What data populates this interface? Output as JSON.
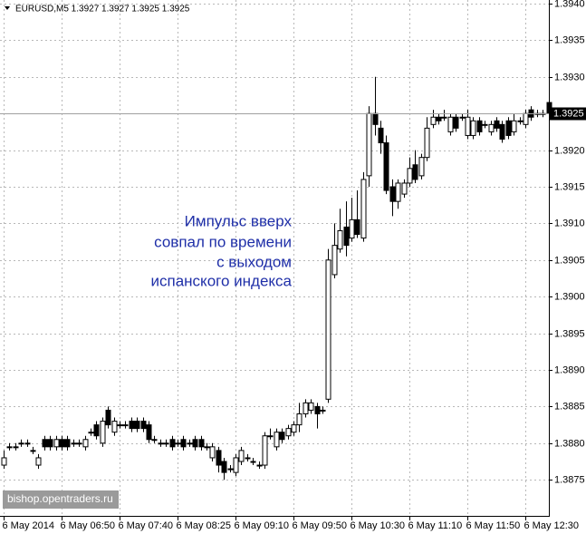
{
  "chart_data": {
    "type": "candlestick",
    "title": "EURUSD,M5  1.3927 1.3927 1.3925 1.3925",
    "annotation": [
      "Импульс вверх",
      "совпал по времени",
      "с выходом",
      "испанского индекса"
    ],
    "watermark": "bishop.opentraders.ru",
    "last_price": 1.3925,
    "up_color": "#ffffff",
    "down_color": "#000000",
    "grid": true,
    "ylim": [
      1.387,
      1.394
    ],
    "yticks": [
      1.3875,
      {
        "value": 1.388,
        "label": "1.3880"
      },
      1.3885,
      {
        "value": 1.389,
        "label": "1.3890"
      },
      1.3895,
      {
        "value": 1.39,
        "label": "1.3900"
      },
      1.3905,
      {
        "value": 1.391,
        "label": "1.3910"
      },
      1.3915,
      {
        "value": 1.392,
        "label": "1.3920"
      },
      1.3925,
      {
        "value": 1.393,
        "label": "1.3930"
      },
      1.3935,
      {
        "value": 1.394,
        "label": "1.3940"
      }
    ],
    "categories": [
      "6 May 2014",
      null,
      null,
      null,
      null,
      null,
      null,
      null,
      null,
      null,
      "6 May 06:50",
      null,
      null,
      null,
      null,
      null,
      null,
      null,
      null,
      null,
      "6 May 07:40",
      null,
      null,
      null,
      null,
      null,
      null,
      null,
      null,
      null,
      "6 May 08:25",
      null,
      null,
      null,
      null,
      null,
      null,
      null,
      null,
      null,
      "6 May 09:10",
      null,
      null,
      null,
      null,
      null,
      null,
      null,
      null,
      null,
      "6 May 09:50",
      null,
      null,
      null,
      null,
      null,
      null,
      null,
      null,
      null,
      "6 May 10:30",
      null,
      null,
      null,
      null,
      null,
      null,
      null,
      null,
      null,
      "6 May 11:10",
      null,
      null,
      null,
      null,
      null,
      null,
      null,
      null,
      null,
      "6 May 11:50",
      null,
      null,
      null,
      null,
      null,
      null,
      null,
      null,
      null,
      "6 May 12:30",
      null,
      null,
      null,
      null
    ],
    "open": [
      1.3877,
      1.38795,
      1.38795,
      1.388,
      1.388,
      1.3879,
      1.3877,
      1.38805,
      1.38805,
      1.38795,
      1.38805,
      1.38805,
      1.388,
      1.388,
      1.38795,
      1.38815,
      1.38825,
      1.388,
      1.38845,
      1.38815,
      1.38825,
      1.38825,
      1.3883,
      1.3883,
      1.3883,
      1.38825,
      1.38805,
      1.388,
      1.388,
      1.38805,
      1.388,
      1.38805,
      1.388,
      1.38805,
      1.38805,
      1.38795,
      1.3878,
      1.3879,
      1.38775,
      1.38765,
      1.3876,
      1.38775,
      1.3878,
      1.38775,
      1.3877,
      1.3877,
      1.3881,
      1.38795,
      1.38815,
      1.3881,
      1.38815,
      1.38825,
      1.3884,
      1.38845,
      1.3885,
      1.38845,
      1.3886,
      1.3903,
      1.39065,
      1.39095,
      1.3908,
      1.39105,
      1.3908,
      1.39165,
      1.3925,
      1.3923,
      1.3921,
      1.3915,
      1.3913,
      1.3914,
      1.39155,
      1.3918,
      1.39165,
      1.3919,
      1.39235,
      1.39245,
      1.39245,
      1.39225,
      1.39245,
      1.39245,
      1.3922,
      1.3922,
      1.3924,
      1.39235,
      1.39225,
      1.3924,
      1.39235,
      1.3924,
      1.39225,
      1.3924,
      1.39235,
      1.39255,
      1.3925,
      1.3925,
      1.39265
    ],
    "high": [
      1.3879,
      1.388,
      1.388,
      1.38805,
      1.38805,
      1.38795,
      1.38785,
      1.3881,
      1.3881,
      1.3881,
      1.3881,
      1.3881,
      1.38805,
      1.38805,
      1.3881,
      1.3882,
      1.3883,
      1.38835,
      1.3885,
      1.38835,
      1.3883,
      1.3883,
      1.38835,
      1.38835,
      1.38835,
      1.3883,
      1.3881,
      1.38805,
      1.38805,
      1.3881,
      1.38805,
      1.3881,
      1.38805,
      1.3881,
      1.3881,
      1.388,
      1.388,
      1.38795,
      1.3878,
      1.3877,
      1.38785,
      1.38795,
      1.38785,
      1.3878,
      1.38775,
      1.38815,
      1.3882,
      1.3882,
      1.3882,
      1.38825,
      1.3883,
      1.38855,
      1.3886,
      1.3886,
      1.38855,
      1.3885,
      1.39065,
      1.391,
      1.3912,
      1.3913,
      1.39135,
      1.39145,
      1.3917,
      1.3926,
      1.393,
      1.3924,
      1.3922,
      1.3916,
      1.3916,
      1.3916,
      1.3919,
      1.392,
      1.39195,
      1.39245,
      1.39255,
      1.3925,
      1.39255,
      1.3925,
      1.3925,
      1.3925,
      1.39255,
      1.39245,
      1.39245,
      1.3924,
      1.3924,
      1.39245,
      1.3924,
      1.39245,
      1.3925,
      1.39245,
      1.39255,
      1.3926,
      1.39255,
      1.39255,
      1.3927
    ],
    "low": [
      1.38765,
      1.3879,
      1.3879,
      1.38795,
      1.38795,
      1.38785,
      1.38765,
      1.3879,
      1.3879,
      1.3879,
      1.3879,
      1.3879,
      1.38795,
      1.38795,
      1.3879,
      1.3881,
      1.38805,
      1.38795,
      1.3882,
      1.3881,
      1.3882,
      1.3882,
      1.38815,
      1.38815,
      1.38815,
      1.388,
      1.388,
      1.38795,
      1.38795,
      1.3879,
      1.38795,
      1.3879,
      1.38795,
      1.3879,
      1.3879,
      1.3879,
      1.38775,
      1.3876,
      1.3875,
      1.3876,
      1.38755,
      1.3877,
      1.38775,
      1.3877,
      1.38765,
      1.38765,
      1.38805,
      1.3879,
      1.388,
      1.38805,
      1.3881,
      1.38815,
      1.38835,
      1.3884,
      1.3882,
      1.3884,
      1.38855,
      1.39025,
      1.3906,
      1.39055,
      1.39075,
      1.3908,
      1.39075,
      1.3915,
      1.3922,
      1.39195,
      1.3914,
      1.3911,
      1.3912,
      1.39135,
      1.3915,
      1.39155,
      1.3916,
      1.39185,
      1.3923,
      1.39235,
      1.3924,
      1.3922,
      1.39225,
      1.3924,
      1.39215,
      1.39215,
      1.3922,
      1.3923,
      1.3922,
      1.39225,
      1.3921,
      1.39215,
      1.3922,
      1.39235,
      1.3923,
      1.3924,
      1.39245,
      1.39245,
      1.39245
    ],
    "close": [
      1.3878,
      1.38795,
      1.38795,
      1.388,
      1.388,
      1.3879,
      1.3878,
      1.38795,
      1.38795,
      1.38805,
      1.38795,
      1.38795,
      1.388,
      1.388,
      1.38805,
      1.38815,
      1.3881,
      1.3883,
      1.38825,
      1.3883,
      1.38825,
      1.38825,
      1.3882,
      1.3882,
      1.3882,
      1.38805,
      1.38805,
      1.388,
      1.388,
      1.38795,
      1.388,
      1.38795,
      1.388,
      1.38795,
      1.38795,
      1.38795,
      1.38795,
      1.3877,
      1.3876,
      1.38765,
      1.3878,
      1.3879,
      1.3878,
      1.38775,
      1.3877,
      1.3881,
      1.3881,
      1.38815,
      1.38805,
      1.3882,
      1.38825,
      1.3884,
      1.38855,
      1.38855,
      1.3884,
      1.38845,
      1.3905,
      1.3907,
      1.3909,
      1.3907,
      1.39105,
      1.39085,
      1.3916,
      1.3925,
      1.39235,
      1.3921,
      1.39145,
      1.3913,
      1.39155,
      1.39155,
      1.39175,
      1.3916,
      1.3919,
      1.3923,
      1.39245,
      1.3924,
      1.39245,
      1.39245,
      1.3923,
      1.39245,
      1.39245,
      1.3924,
      1.39225,
      1.39235,
      1.39235,
      1.3923,
      1.39215,
      1.3922,
      1.3924,
      1.3924,
      1.3925,
      1.39245,
      1.3925,
      1.3925,
      1.3925
    ]
  }
}
